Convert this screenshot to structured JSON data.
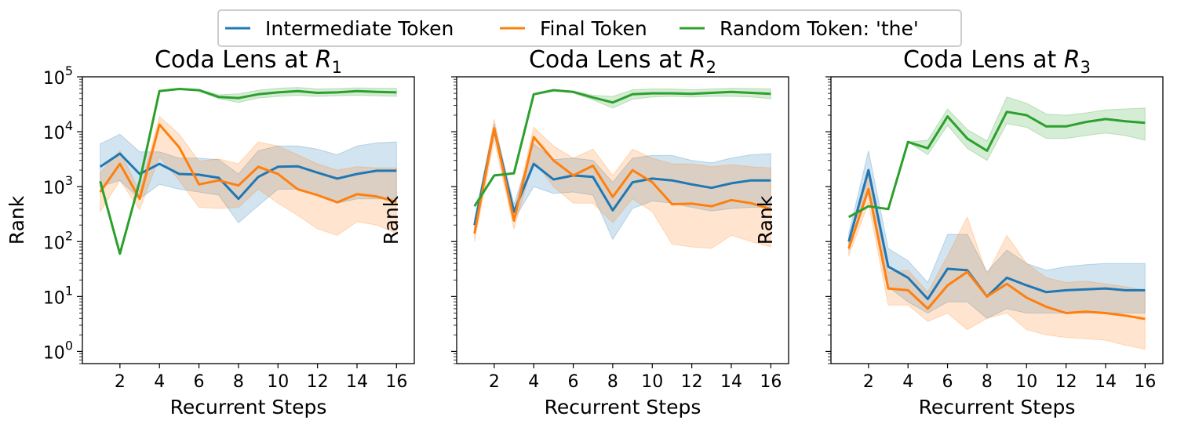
{
  "chart_data": {
    "type": "line",
    "legend": {
      "placement": "top-center",
      "entries": [
        {
          "label": "Intermediate Token",
          "color": "#1f77b4"
        },
        {
          "label": "Final Token",
          "color": "#ff7f0e"
        },
        {
          "label": "Random Token: 'the'",
          "color": "#2ca02c"
        }
      ]
    },
    "yscale": "log",
    "ylim": [
      0.6,
      100000
    ],
    "ytick_labels": [
      "10",
      "10",
      "10",
      "10",
      "10",
      "10"
    ],
    "ytick_exponents": [
      "0",
      "1",
      "2",
      "3",
      "4",
      "5"
    ],
    "xlim": [
      0.1,
      16.9
    ],
    "xticks": [
      2,
      4,
      6,
      8,
      10,
      12,
      14,
      16
    ],
    "x": [
      1,
      2,
      3,
      4,
      5,
      6,
      7,
      8,
      9,
      10,
      11,
      12,
      13,
      14,
      15,
      16
    ],
    "panels": [
      {
        "title_main": "Coda Lens at ",
        "title_var": "R",
        "title_sub": "1",
        "xlabel": "Recurrent Steps",
        "ylabel": "Rank",
        "series": [
          {
            "name": "Intermediate Token",
            "color": "#1f77b4",
            "values": [
              2300,
              4000,
              1700,
              2600,
              1700,
              1650,
              1450,
              600,
              1500,
              2300,
              2350,
              1800,
              1400,
              1700,
              1950,
              1950
            ],
            "lower": [
              1000,
              1300,
              600,
              1100,
              900,
              800,
              700,
              220,
              450,
              900,
              900,
              700,
              500,
              600,
              600,
              600
            ],
            "upper": [
              6000,
              9000,
              4300,
              4300,
              3300,
              3300,
              3100,
              1700,
              4500,
              5500,
              5500,
              4800,
              3800,
              5500,
              6300,
              6500
            ]
          },
          {
            "name": "Final Token",
            "color": "#ff7f0e",
            "values": [
              800,
              2600,
              600,
              13500,
              5200,
              1100,
              1300,
              1050,
              2300,
              1700,
              900,
              700,
              520,
              730,
              660,
              530
            ],
            "lower": [
              350,
              1300,
              380,
              3500,
              1300,
              420,
              400,
              420,
              900,
              500,
              300,
              170,
              130,
              230,
              200,
              140
            ],
            "upper": [
              1800,
              4500,
              800,
              19000,
              9000,
              2900,
              3200,
              2600,
              6500,
              5500,
              3800,
              2600,
              2000,
              2300,
              2200,
              2200
            ]
          },
          {
            "name": "Random Token: 'the'",
            "color": "#2ca02c",
            "values": [
              1250,
              60,
              1250,
              55000,
              60000,
              57000,
              43000,
              41000,
              48000,
              52000,
              55000,
              51000,
              52000,
              55000,
              53000,
              52000
            ],
            "lower": [
              1250,
              60,
              1250,
              55000,
              60000,
              55000,
              40000,
              34000,
              41000,
              44000,
              46000,
              44000,
              45000,
              46000,
              45000,
              44000
            ],
            "upper": [
              1250,
              60,
              1250,
              55000,
              60000,
              59000,
              47000,
              49000,
              57000,
              62000,
              64000,
              60000,
              61000,
              63000,
              62000,
              62000
            ]
          }
        ]
      },
      {
        "title_main": "Coda Lens at ",
        "title_var": "R",
        "title_sub": "2",
        "xlabel": "Recurrent Steps",
        "ylabel": "Rank",
        "series": [
          {
            "name": "Intermediate Token",
            "color": "#1f77b4",
            "values": [
              200,
              11000,
              350,
              2600,
              1350,
              1600,
              1500,
              370,
              1200,
              1400,
              1300,
              1100,
              950,
              1150,
              1300,
              1300
            ],
            "lower": [
              140,
              9000,
              250,
              1000,
              750,
              800,
              700,
              110,
              400,
              550,
              500,
              420,
              360,
              400,
              420,
              420
            ],
            "upper": [
              260,
              14000,
              480,
              6000,
              3100,
              3300,
              3000,
              1200,
              3300,
              3700,
              3700,
              3000,
              2700,
              3300,
              3800,
              4000
            ]
          },
          {
            "name": "Final Token",
            "color": "#ff7f0e",
            "values": [
              140,
              11500,
              240,
              8000,
              3000,
              1600,
              2400,
              650,
              2000,
              1200,
              480,
              490,
              440,
              570,
              500,
              390
            ],
            "lower": [
              100,
              7000,
              170,
              3000,
              1000,
              500,
              500,
              220,
              600,
              350,
              90,
              80,
              75,
              130,
              100,
              80
            ],
            "upper": [
              200,
              17000,
              320,
              12000,
              5500,
              3300,
              4800,
              1600,
              4800,
              3300,
              2600,
              2600,
              2300,
              2500,
              2300,
              2200
            ]
          },
          {
            "name": "Random Token: 'the'",
            "color": "#2ca02c",
            "values": [
              440,
              1600,
              1750,
              48000,
              57000,
              53000,
              42000,
              34000,
              48000,
              50000,
              50000,
              49000,
              51000,
              53000,
              51000,
              49000
            ],
            "lower": [
              440,
              1600,
              1750,
              48000,
              57000,
              51000,
              38000,
              27000,
              39000,
              43000,
              44000,
              43000,
              44000,
              44000,
              43000,
              40000
            ],
            "upper": [
              440,
              1600,
              1750,
              48000,
              57000,
              55000,
              46000,
              44000,
              58000,
              60000,
              60000,
              58000,
              60000,
              62000,
              61000,
              60000
            ]
          }
        ]
      },
      {
        "title_main": "Coda Lens at ",
        "title_var": "R",
        "title_sub": "3",
        "xlabel": "Recurrent Steps",
        "ylabel": "Rank",
        "series": [
          {
            "name": "Intermediate Token",
            "color": "#1f77b4",
            "values": [
              100,
              2000,
              35,
              22,
              9,
              32,
              30,
              10,
              22,
              16,
              12,
              13,
              13.5,
              14,
              13,
              13
            ],
            "lower": [
              70,
              800,
              15,
              8,
              5,
              8,
              8,
              4,
              6,
              5,
              5,
              5,
              5,
              5,
              5,
              5
            ],
            "upper": [
              140,
              4500,
              75,
              45,
              18,
              135,
              135,
              28,
              70,
              40,
              30,
              35,
              38,
              40,
              40,
              40
            ]
          },
          {
            "name": "Final Token",
            "color": "#ff7f0e",
            "values": [
              75,
              900,
              14,
              13,
              6,
              16,
              28,
              10,
              17,
              9.5,
              6.5,
              5,
              5.3,
              5,
              4.5,
              3.9
            ],
            "lower": [
              55,
              500,
              7,
              7,
              3.5,
              5,
              2.5,
              4,
              5,
              2.5,
              2,
              1.8,
              1.7,
              1.6,
              1.3,
              1.1
            ],
            "upper": [
              95,
              1600,
              28,
              30,
              12,
              55,
              280,
              25,
              130,
              40,
              22,
              18,
              19,
              17,
              15,
              13
            ]
          },
          {
            "name": "Random Token: 'the'",
            "color": "#2ca02c",
            "values": [
              280,
              440,
              390,
              6500,
              5000,
              19000,
              7500,
              4500,
              23000,
              20000,
              12500,
              12500,
              15000,
              17000,
              15500,
              14500
            ],
            "lower": [
              280,
              440,
              390,
              6500,
              3800,
              13000,
              5000,
              3000,
              14000,
              12000,
              7500,
              7500,
              8500,
              9500,
              8500,
              7000
            ],
            "upper": [
              280,
              440,
              390,
              6500,
              7000,
              26000,
              11000,
              6800,
              43000,
              33000,
              21000,
              20000,
              22000,
              25000,
              26000,
              27000
            ]
          }
        ]
      }
    ]
  }
}
